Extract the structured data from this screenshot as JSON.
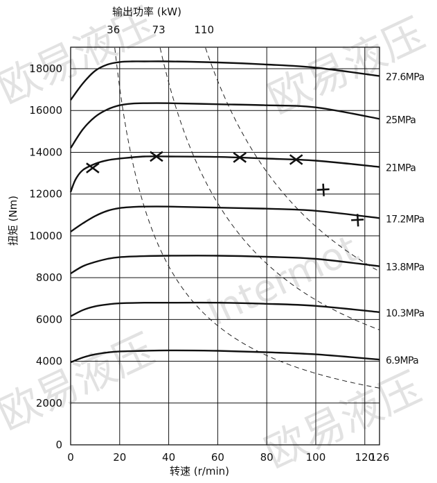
{
  "chart_data": {
    "type": "line",
    "xlabel": "转速 (r/min)",
    "ylabel": "扭矩 (Nm)",
    "xlim": [
      0,
      126
    ],
    "ylim": [
      0,
      19000
    ],
    "xticks": [
      "0",
      "20",
      "40",
      "60",
      "80",
      "100",
      "120",
      "126"
    ],
    "xtick_values": [
      0,
      20,
      40,
      60,
      80,
      100,
      120,
      126
    ],
    "yticks": [
      "0",
      "2000",
      "4000",
      "6000",
      "8000",
      "10000",
      "12000",
      "14000",
      "16000",
      "18000"
    ],
    "ytick_values": [
      0,
      2000,
      4000,
      6000,
      8000,
      10000,
      12000,
      14000,
      16000,
      18000
    ],
    "grid": true,
    "series": [
      {
        "name": "27.6MPa",
        "x": [
          0,
          5,
          10,
          15,
          20,
          25,
          30,
          40,
          60,
          80,
          100,
          126
        ],
        "y": [
          16500,
          17300,
          17900,
          18200,
          18320,
          18350,
          18350,
          18350,
          18300,
          18200,
          18050,
          17650
        ]
      },
      {
        "name": "25MPa",
        "x": [
          0,
          5,
          10,
          15,
          20,
          25,
          30,
          40,
          60,
          80,
          100,
          126
        ],
        "y": [
          14200,
          15100,
          15700,
          16050,
          16250,
          16330,
          16350,
          16350,
          16300,
          16250,
          16150,
          15600
        ]
      },
      {
        "name": "21MPa",
        "x": [
          0,
          2,
          5,
          10,
          15,
          20,
          30,
          40,
          60,
          80,
          100,
          126
        ],
        "y": [
          12100,
          12700,
          13150,
          13450,
          13620,
          13700,
          13800,
          13800,
          13780,
          13700,
          13600,
          13300
        ]
      },
      {
        "name": "17.2MPa",
        "x": [
          0,
          5,
          10,
          15,
          20,
          25,
          30,
          40,
          60,
          80,
          100,
          126
        ],
        "y": [
          10200,
          10600,
          10950,
          11200,
          11330,
          11380,
          11400,
          11400,
          11350,
          11300,
          11200,
          10850
        ]
      },
      {
        "name": "13.8MPa",
        "x": [
          0,
          5,
          10,
          15,
          20,
          30,
          40,
          60,
          80,
          100,
          126
        ],
        "y": [
          8200,
          8550,
          8750,
          8900,
          8980,
          9030,
          9050,
          9050,
          9000,
          8900,
          8550
        ]
      },
      {
        "name": "10.3MPa",
        "x": [
          0,
          5,
          10,
          15,
          20,
          30,
          40,
          60,
          80,
          100,
          126
        ],
        "y": [
          6150,
          6450,
          6630,
          6720,
          6770,
          6800,
          6800,
          6800,
          6750,
          6650,
          6350
        ]
      },
      {
        "name": "6.9MPa",
        "x": [
          0,
          5,
          10,
          15,
          20,
          30,
          40,
          60,
          80,
          100,
          126
        ],
        "y": [
          3950,
          4180,
          4330,
          4420,
          4470,
          4500,
          4520,
          4500,
          4430,
          4330,
          4080
        ]
      }
    ],
    "power_curves": {
      "title": "输出功率 (kW)",
      "values": [
        36,
        73,
        110
      ],
      "labels": [
        "36",
        "73",
        "110"
      ],
      "style": "dashed"
    },
    "markers": [
      {
        "symbol": "x",
        "x": 9,
        "y": 13250
      },
      {
        "symbol": "x",
        "x": 35,
        "y": 13800
      },
      {
        "symbol": "x",
        "x": 69,
        "y": 13750
      },
      {
        "symbol": "x",
        "x": 92,
        "y": 13650
      },
      {
        "symbol": "+",
        "x": 103,
        "y": 12200
      },
      {
        "symbol": "+",
        "x": 117,
        "y": 10750
      }
    ]
  },
  "watermarks": [
    "欧易液压",
    "Intermot"
  ]
}
